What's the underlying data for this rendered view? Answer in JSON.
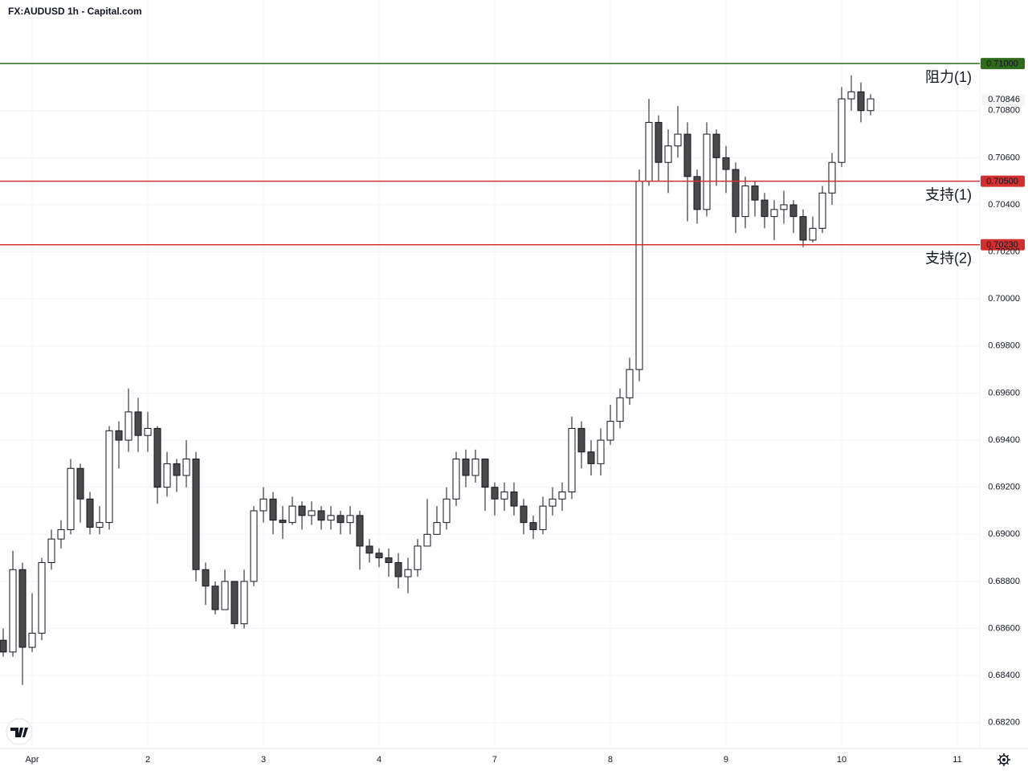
{
  "chart_data": {
    "type": "candlestick",
    "title": "FX:AUDUSD 1h - Capital.com",
    "x": [
      -6,
      -4,
      -2,
      0,
      2,
      4,
      6,
      8,
      10,
      12,
      14,
      16,
      18,
      20,
      22,
      24,
      26,
      28,
      30,
      32,
      34,
      36,
      38,
      40,
      42,
      44,
      46,
      48,
      50,
      52,
      54,
      56,
      58,
      60,
      62,
      64,
      66,
      68,
      70,
      72,
      74,
      76,
      78,
      80,
      82,
      84,
      86,
      88,
      90,
      92,
      94,
      96,
      98,
      100,
      102,
      104,
      106,
      108,
      110,
      112,
      114,
      116,
      118,
      120,
      122,
      124,
      126,
      128,
      130,
      132,
      134,
      136,
      138,
      140,
      142,
      144,
      146,
      148,
      150,
      152,
      154,
      156,
      158,
      160,
      162,
      164,
      166,
      168,
      170,
      172,
      174
    ],
    "open": [
      0.6855,
      0.685,
      0.6885,
      0.6852,
      0.6858,
      0.6888,
      0.6898,
      0.6902,
      0.6928,
      0.6915,
      0.6903,
      0.6905,
      0.6944,
      0.694,
      0.6952,
      0.6942,
      0.6945,
      0.692,
      0.693,
      0.6925,
      0.6932,
      0.6885,
      0.6878,
      0.6868,
      0.688,
      0.6862,
      0.688,
      0.691,
      0.6915,
      0.6906,
      0.6905,
      0.6912,
      0.6908,
      0.691,
      0.6906,
      0.6908,
      0.6905,
      0.6908,
      0.6895,
      0.6892,
      0.689,
      0.6888,
      0.6882,
      0.6885,
      0.6895,
      0.69,
      0.6905,
      0.6915,
      0.6932,
      0.6925,
      0.6932,
      0.692,
      0.6915,
      0.6918,
      0.6912,
      0.6905,
      0.6902,
      0.6912,
      0.6915,
      0.6918,
      0.6945,
      0.6935,
      0.693,
      0.694,
      0.6948,
      0.6958,
      0.697,
      0.705,
      0.7075,
      0.7058,
      0.7065,
      0.707,
      0.7052,
      0.7038,
      0.707,
      0.706,
      0.7055,
      0.7035,
      0.7048,
      0.7042,
      0.7035,
      0.7038,
      0.704,
      0.7035,
      0.7025,
      0.703,
      0.7045,
      0.7058,
      0.7085,
      0.7088,
      0.708
    ],
    "high": [
      0.686,
      0.6893,
      0.6888,
      0.6875,
      0.689,
      0.6902,
      0.6906,
      0.6932,
      0.693,
      0.6918,
      0.6912,
      0.6946,
      0.6948,
      0.6962,
      0.6958,
      0.6952,
      0.6946,
      0.6935,
      0.6932,
      0.694,
      0.6935,
      0.6888,
      0.688,
      0.6885,
      0.688,
      0.6885,
      0.6912,
      0.692,
      0.6918,
      0.6912,
      0.6916,
      0.6914,
      0.6914,
      0.6912,
      0.6912,
      0.691,
      0.6912,
      0.691,
      0.6898,
      0.6894,
      0.6894,
      0.6892,
      0.689,
      0.6898,
      0.6915,
      0.6912,
      0.692,
      0.6935,
      0.6936,
      0.6936,
      0.6932,
      0.6922,
      0.6922,
      0.6922,
      0.6915,
      0.6908,
      0.6916,
      0.692,
      0.6922,
      0.695,
      0.6948,
      0.694,
      0.6945,
      0.6955,
      0.6962,
      0.6975,
      0.7055,
      0.7085,
      0.7078,
      0.7072,
      0.7082,
      0.7075,
      0.7055,
      0.7075,
      0.7072,
      0.7065,
      0.7058,
      0.7052,
      0.705,
      0.7045,
      0.7042,
      0.7046,
      0.7042,
      0.7038,
      0.7035,
      0.7048,
      0.7062,
      0.709,
      0.7095,
      0.7092,
      0.7087
    ],
    "low": [
      0.6848,
      0.6848,
      0.6836,
      0.685,
      0.6855,
      0.6885,
      0.6894,
      0.69,
      0.6905,
      0.69,
      0.69,
      0.6902,
      0.6928,
      0.6935,
      0.6935,
      0.6935,
      0.6913,
      0.6916,
      0.6918,
      0.692,
      0.688,
      0.687,
      0.6866,
      0.687,
      0.686,
      0.686,
      0.6878,
      0.6905,
      0.69,
      0.6898,
      0.6904,
      0.6902,
      0.6904,
      0.6902,
      0.6902,
      0.69,
      0.69,
      0.6885,
      0.6888,
      0.6886,
      0.6882,
      0.6877,
      0.6875,
      0.6882,
      0.6895,
      0.69,
      0.6902,
      0.6912,
      0.692,
      0.6922,
      0.691,
      0.6908,
      0.691,
      0.6908,
      0.69,
      0.6898,
      0.69,
      0.6908,
      0.691,
      0.6915,
      0.6928,
      0.6925,
      0.6925,
      0.6938,
      0.6945,
      0.6955,
      0.6965,
      0.7048,
      0.705,
      0.7045,
      0.706,
      0.7033,
      0.7032,
      0.7035,
      0.7048,
      0.7045,
      0.7028,
      0.703,
      0.7035,
      0.703,
      0.7025,
      0.7032,
      0.7028,
      0.7022,
      0.7024,
      0.7028,
      0.704,
      0.7056,
      0.708,
      0.7075,
      0.7078
    ],
    "close": [
      0.685,
      0.6885,
      0.6852,
      0.6858,
      0.6888,
      0.6898,
      0.6902,
      0.6928,
      0.6915,
      0.6903,
      0.6905,
      0.6944,
      0.694,
      0.6952,
      0.6942,
      0.6945,
      0.692,
      0.693,
      0.6925,
      0.6932,
      0.6885,
      0.6878,
      0.6868,
      0.688,
      0.6862,
      0.688,
      0.691,
      0.6915,
      0.6906,
      0.6905,
      0.6912,
      0.6908,
      0.691,
      0.6906,
      0.6908,
      0.6905,
      0.6908,
      0.6895,
      0.6892,
      0.689,
      0.6888,
      0.6882,
      0.6885,
      0.6895,
      0.69,
      0.6905,
      0.6915,
      0.6932,
      0.6925,
      0.6932,
      0.692,
      0.6915,
      0.6918,
      0.6912,
      0.6905,
      0.6902,
      0.6912,
      0.6915,
      0.6918,
      0.6945,
      0.6935,
      0.693,
      0.694,
      0.6948,
      0.6958,
      0.697,
      0.705,
      0.7075,
      0.7058,
      0.7065,
      0.707,
      0.7052,
      0.7038,
      0.707,
      0.706,
      0.7055,
      0.7035,
      0.7048,
      0.7042,
      0.7035,
      0.7038,
      0.704,
      0.7035,
      0.7025,
      0.703,
      0.7045,
      0.7058,
      0.7085,
      0.7088,
      0.708,
      0.7085
    ],
    "up_color": "#ffffff",
    "down_color": "#4a4a4a",
    "edge_color": "#131722",
    "xlim": [
      -6.67,
      196.67
    ],
    "xticks": [
      {
        "value": 0,
        "label": "Apr"
      },
      {
        "value": 24,
        "label": "2"
      },
      {
        "value": 48,
        "label": "3"
      },
      {
        "value": 72,
        "label": "4"
      },
      {
        "value": 96,
        "label": "7"
      },
      {
        "value": 120,
        "label": "8"
      },
      {
        "value": 144,
        "label": "9"
      },
      {
        "value": 168,
        "label": "10"
      },
      {
        "value": 192,
        "label": "11"
      }
    ],
    "ylim": [
      0.6809,
      0.7127
    ],
    "yticks": [
      {
        "value": 0.682,
        "label": "0.68200"
      },
      {
        "value": 0.684,
        "label": "0.68400"
      },
      {
        "value": 0.686,
        "label": "0.68600"
      },
      {
        "value": 0.688,
        "label": "0.68800"
      },
      {
        "value": 0.69,
        "label": "0.69000"
      },
      {
        "value": 0.692,
        "label": "0.69200"
      },
      {
        "value": 0.694,
        "label": "0.69400"
      },
      {
        "value": 0.696,
        "label": "0.69600"
      },
      {
        "value": 0.698,
        "label": "0.69800"
      },
      {
        "value": 0.7,
        "label": "0.70000"
      },
      {
        "value": 0.702,
        "label": "0.70200"
      },
      {
        "value": 0.704,
        "label": "0.70400"
      },
      {
        "value": 0.706,
        "label": "0.70600"
      },
      {
        "value": 0.708,
        "label": "0.70800"
      }
    ],
    "grid": true,
    "levels": [
      {
        "name": "阻力(1)",
        "value": 0.71,
        "label": "0.71000",
        "color": "#2e6b1a"
      },
      {
        "name": "支持(1)",
        "value": 0.705,
        "label": "0.70500",
        "color": "#d32f2f"
      },
      {
        "name": "支持(2)",
        "value": 0.7023,
        "label": "0.70230",
        "color": "#d32f2f"
      }
    ],
    "last_price": {
      "value": 0.70846,
      "label": "0.70846"
    }
  }
}
